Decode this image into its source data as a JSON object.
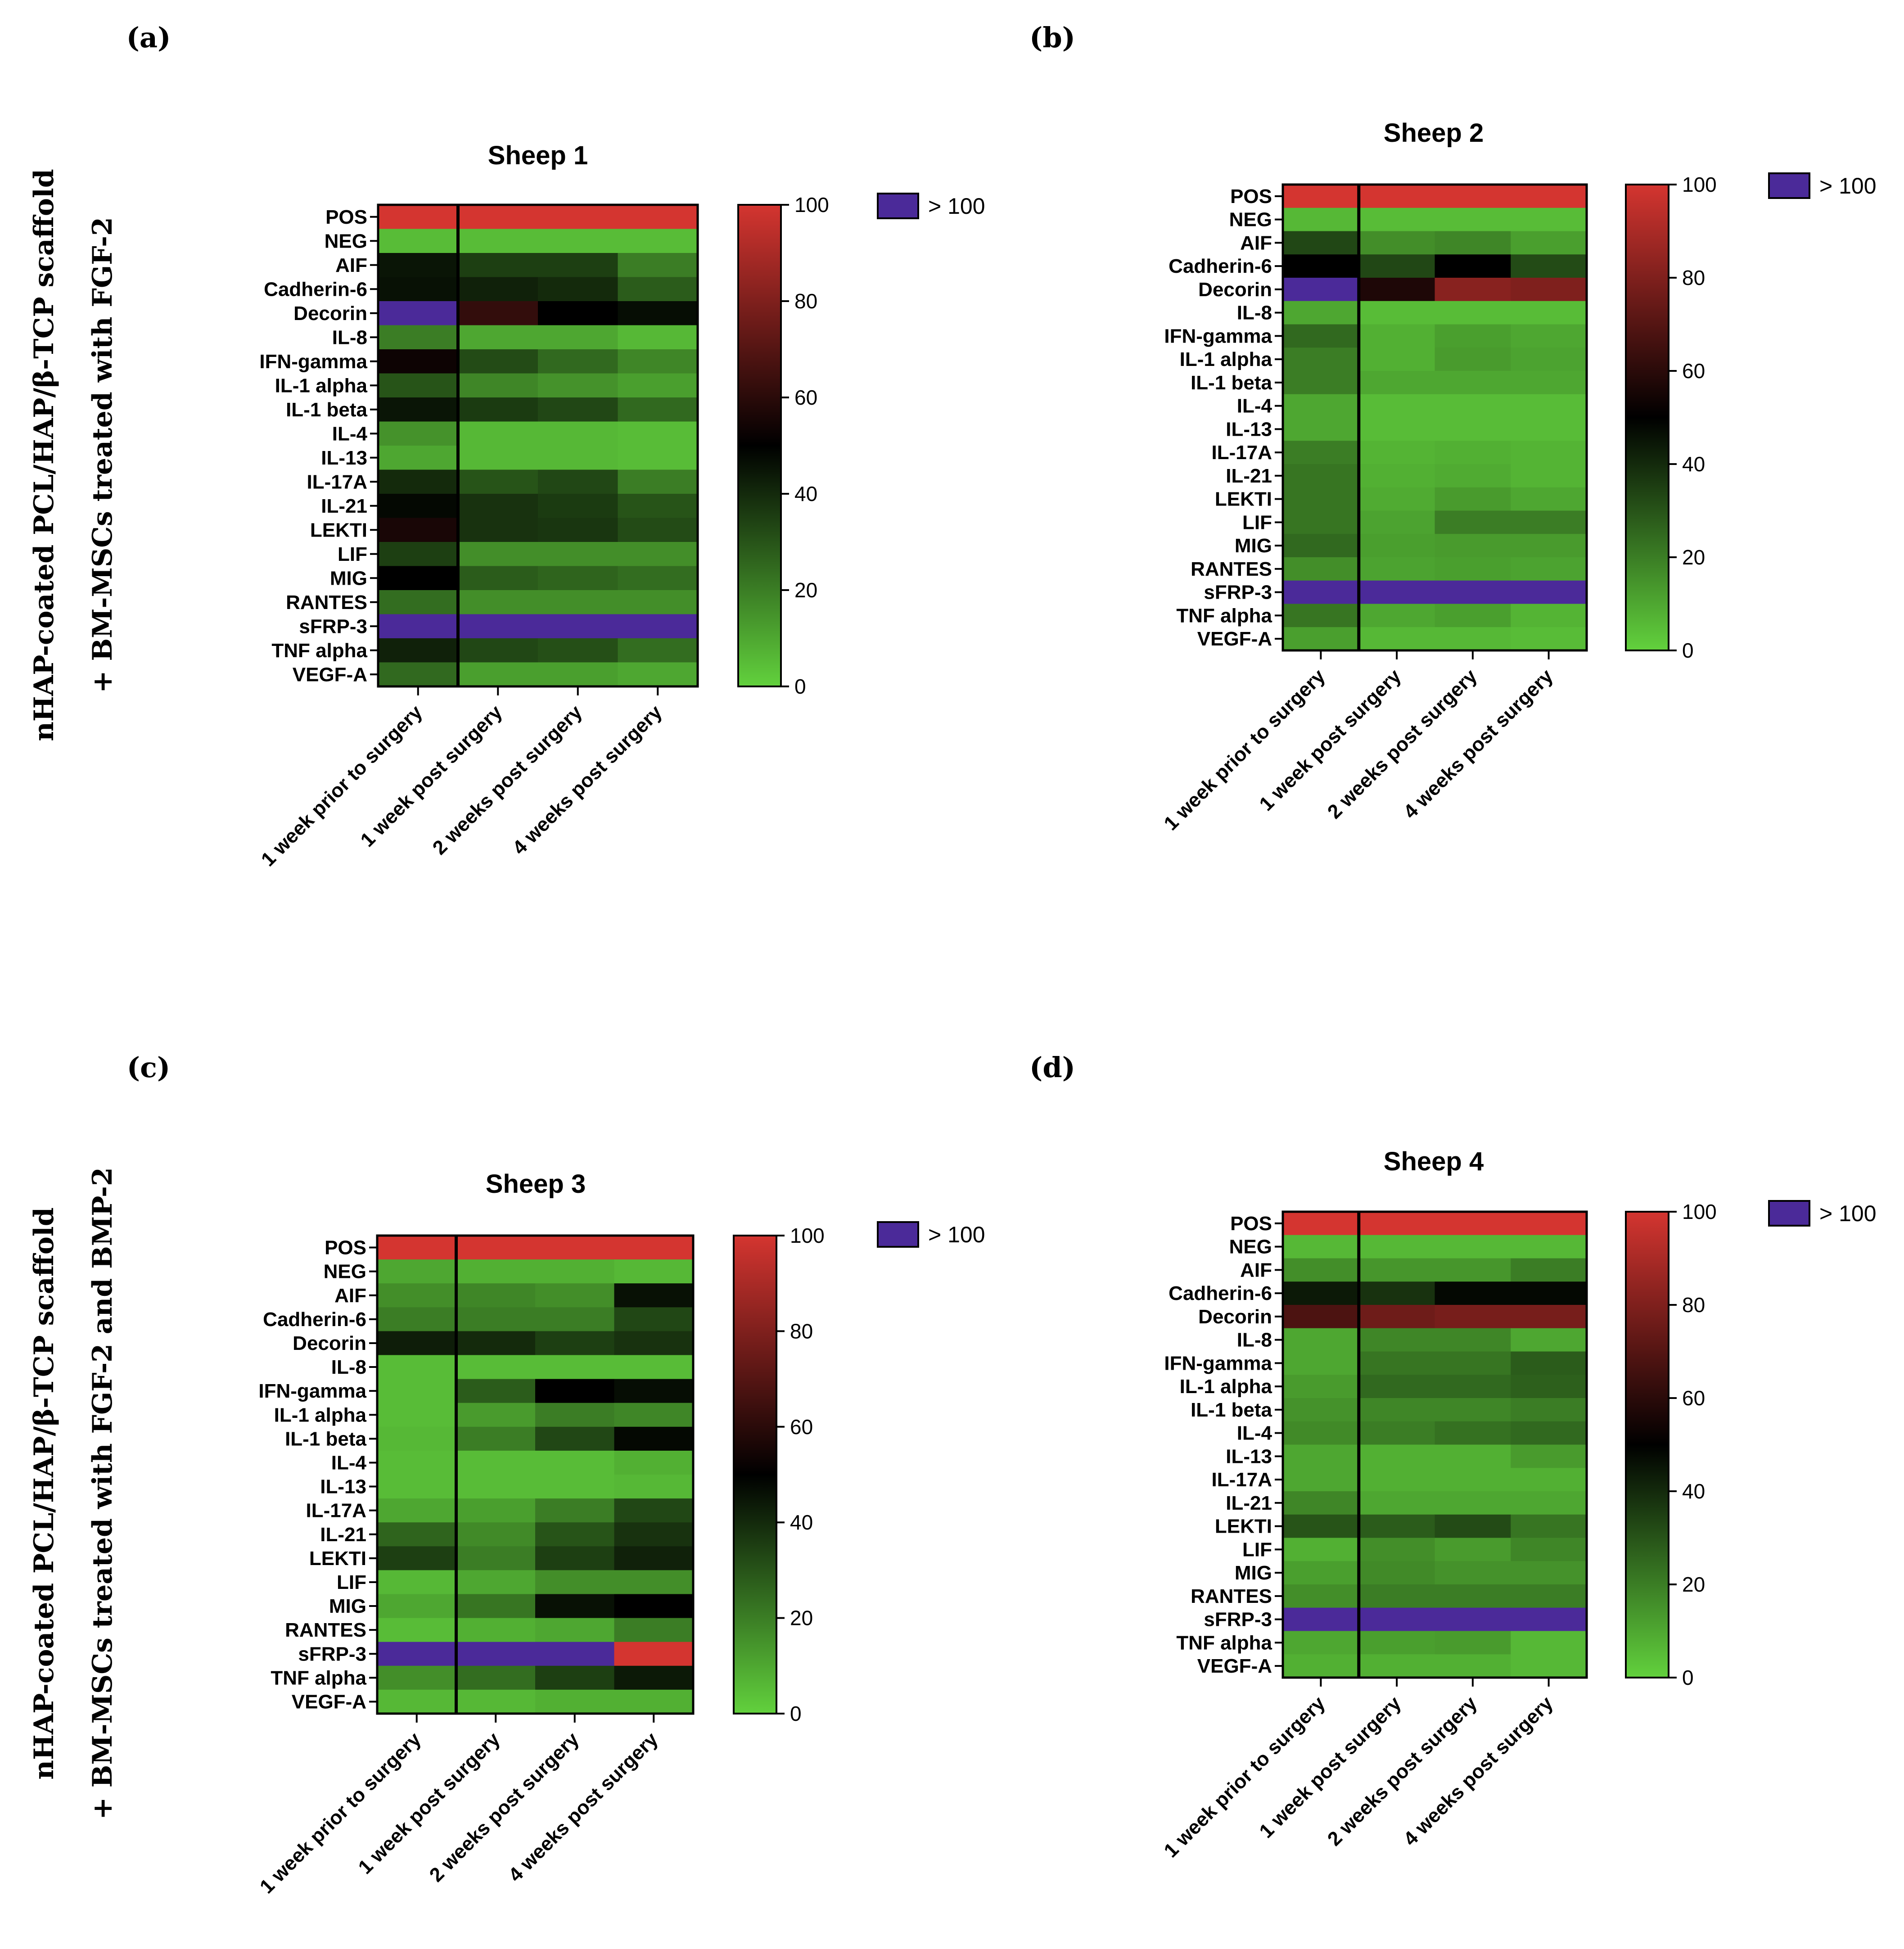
{
  "figure": {
    "row_titles": [
      [
        "nHAP-coated PCL/HAP/β-TCP scaffold",
        "+ BM-MSCs treated with FGF-2"
      ],
      [
        "nHAP-coated PCL/HAP/β-TCP scaffold",
        "+ BM-MSCs treated with FGF-2 and BMP-2"
      ]
    ]
  },
  "colors": {
    "scale": [
      "#62d13d",
      "#000000",
      "#d43530"
    ],
    "over_range": "#4b2a99"
  },
  "chart_data": [
    {
      "type": "heatmap",
      "panel": "(a)",
      "title": "Sheep 1",
      "rows": [
        "POS",
        "NEG",
        "AIF",
        "Cadherin-6",
        "Decorin",
        "IL-8",
        "IFN-gamma",
        "IL-1 alpha",
        "IL-1 beta",
        "IL-4",
        "IL-13",
        "IL-17A",
        "IL-21",
        "LEKTI",
        "LIF",
        "MIG",
        "RANTES",
        "sFRP-3",
        "TNF alpha",
        "VEGF-A"
      ],
      "columns": [
        "1 week prior to surgery",
        "1 week post surgery",
        "2 weeks post surgery",
        "4 weeks post surgery"
      ],
      "values": [
        [
          100,
          100,
          100,
          100
        ],
        [
          5,
          5,
          5,
          5
        ],
        [
          45,
          35,
          35,
          20
        ],
        [
          46,
          42,
          40,
          28
        ],
        [
          ">100",
          62,
          50,
          47
        ],
        [
          20,
          10,
          10,
          6
        ],
        [
          53,
          32,
          25,
          18
        ],
        [
          30,
          18,
          15,
          12
        ],
        [
          45,
          36,
          33,
          25
        ],
        [
          15,
          6,
          6,
          5
        ],
        [
          10,
          6,
          6,
          5
        ],
        [
          40,
          30,
          33,
          20
        ],
        [
          48,
          38,
          36,
          30
        ],
        [
          56,
          38,
          37,
          32
        ],
        [
          35,
          16,
          16,
          16
        ],
        [
          50,
          28,
          26,
          24
        ],
        [
          24,
          16,
          16,
          16
        ],
        [
          ">100",
          ">100",
          ">100",
          ">100"
        ],
        [
          42,
          33,
          31,
          24
        ],
        [
          25,
          12,
          12,
          10
        ]
      ],
      "colorbar": {
        "min": 0,
        "max": 100,
        "ticks": [
          0,
          20,
          40,
          60,
          80,
          100
        ]
      },
      "legend": "> 100"
    },
    {
      "type": "heatmap",
      "panel": "(b)",
      "title": "Sheep 2",
      "rows": [
        "POS",
        "NEG",
        "AIF",
        "Cadherin-6",
        "Decorin",
        "IL-8",
        "IFN-gamma",
        "IL-1 alpha",
        "IL-1 beta",
        "IL-4",
        "IL-13",
        "IL-17A",
        "IL-21",
        "LEKTI",
        "LIF",
        "MIG",
        "RANTES",
        "sFRP-3",
        "TNF alpha",
        "VEGF-A"
      ],
      "columns": [
        "1 week prior to surgery",
        "1 week post surgery",
        "2 weeks post surgery",
        "4 weeks post surgery"
      ],
      "values": [
        [
          100,
          100,
          100,
          100
        ],
        [
          6,
          5,
          5,
          5
        ],
        [
          33,
          16,
          18,
          12
        ],
        [
          50,
          33,
          50,
          32
        ],
        [
          ">100",
          57,
          82,
          80
        ],
        [
          10,
          5,
          5,
          5
        ],
        [
          25,
          8,
          12,
          10
        ],
        [
          20,
          8,
          13,
          11
        ],
        [
          20,
          10,
          10,
          10
        ],
        [
          10,
          5,
          5,
          5
        ],
        [
          10,
          5,
          5,
          5
        ],
        [
          20,
          7,
          8,
          7
        ],
        [
          22,
          8,
          9,
          7
        ],
        [
          22,
          9,
          13,
          10
        ],
        [
          22,
          11,
          20,
          20
        ],
        [
          25,
          12,
          13,
          13
        ],
        [
          16,
          11,
          12,
          11
        ],
        [
          ">100",
          ">100",
          ">100",
          ">100"
        ],
        [
          22,
          10,
          12,
          7
        ],
        [
          12,
          6,
          6,
          5
        ]
      ],
      "colorbar": {
        "min": 0,
        "max": 100,
        "ticks": [
          0,
          20,
          40,
          60,
          80,
          100
        ]
      },
      "legend": "> 100"
    },
    {
      "type": "heatmap",
      "panel": "(c)",
      "title": "Sheep 3",
      "rows": [
        "POS",
        "NEG",
        "AIF",
        "Cadherin-6",
        "Decorin",
        "IL-8",
        "IFN-gamma",
        "IL-1 alpha",
        "IL-1 beta",
        "IL-4",
        "IL-13",
        "IL-17A",
        "IL-21",
        "LEKTI",
        "LIF",
        "MIG",
        "RANTES",
        "sFRP-3",
        "TNF alpha",
        "VEGF-A"
      ],
      "columns": [
        "1 week prior to surgery",
        "1 week post surgery",
        "2 weeks post surgery",
        "4 weeks post surgery"
      ],
      "values": [
        [
          100,
          100,
          100,
          100
        ],
        [
          10,
          8,
          8,
          6
        ],
        [
          16,
          18,
          16,
          46
        ],
        [
          20,
          20,
          20,
          33
        ],
        [
          43,
          40,
          35,
          38
        ],
        [
          5,
          5,
          5,
          5
        ],
        [
          5,
          28,
          50,
          47
        ],
        [
          5,
          13,
          20,
          18
        ],
        [
          6,
          20,
          33,
          48
        ],
        [
          5,
          5,
          5,
          8
        ],
        [
          5,
          5,
          5,
          6
        ],
        [
          10,
          12,
          20,
          33
        ],
        [
          26,
          17,
          30,
          38
        ],
        [
          35,
          20,
          35,
          42
        ],
        [
          6,
          10,
          16,
          16
        ],
        [
          10,
          22,
          46,
          50
        ],
        [
          5,
          8,
          10,
          20
        ],
        [
          ">100",
          ">100",
          ">100",
          100
        ],
        [
          16,
          24,
          35,
          44
        ],
        [
          6,
          6,
          8,
          8
        ]
      ],
      "colorbar": {
        "min": 0,
        "max": 100,
        "ticks": [
          0,
          20,
          40,
          60,
          80,
          100
        ]
      },
      "legend": "> 100"
    },
    {
      "type": "heatmap",
      "panel": "(d)",
      "title": "Sheep 4",
      "rows": [
        "POS",
        "NEG",
        "AIF",
        "Cadherin-6",
        "Decorin",
        "IL-8",
        "IFN-gamma",
        "IL-1 alpha",
        "IL-1 beta",
        "IL-4",
        "IL-13",
        "IL-17A",
        "IL-21",
        "LEKTI",
        "LIF",
        "MIG",
        "RANTES",
        "sFRP-3",
        "TNF alpha",
        "VEGF-A"
      ],
      "columns": [
        "1 week prior to surgery",
        "1 week post surgery",
        "2 weeks post surgery",
        "4 weeks post surgery"
      ],
      "values": [
        [
          100,
          100,
          100,
          100
        ],
        [
          6,
          6,
          6,
          6
        ],
        [
          16,
          14,
          14,
          20
        ],
        [
          44,
          38,
          48,
          48
        ],
        [
          68,
          76,
          78,
          78
        ],
        [
          10,
          18,
          18,
          10
        ],
        [
          10,
          22,
          22,
          28
        ],
        [
          13,
          25,
          25,
          27
        ],
        [
          15,
          18,
          18,
          20
        ],
        [
          17,
          20,
          23,
          25
        ],
        [
          10,
          8,
          8,
          13
        ],
        [
          10,
          8,
          8,
          8
        ],
        [
          18,
          10,
          10,
          10
        ],
        [
          30,
          28,
          32,
          22
        ],
        [
          8,
          16,
          13,
          18
        ],
        [
          12,
          17,
          15,
          15
        ],
        [
          16,
          20,
          20,
          20
        ],
        [
          ">100",
          ">100",
          ">100",
          ">100"
        ],
        [
          10,
          12,
          13,
          6
        ],
        [
          8,
          8,
          8,
          6
        ]
      ],
      "colorbar": {
        "min": 0,
        "max": 100,
        "ticks": [
          0,
          20,
          40,
          60,
          80,
          100
        ]
      },
      "legend": "> 100"
    }
  ]
}
